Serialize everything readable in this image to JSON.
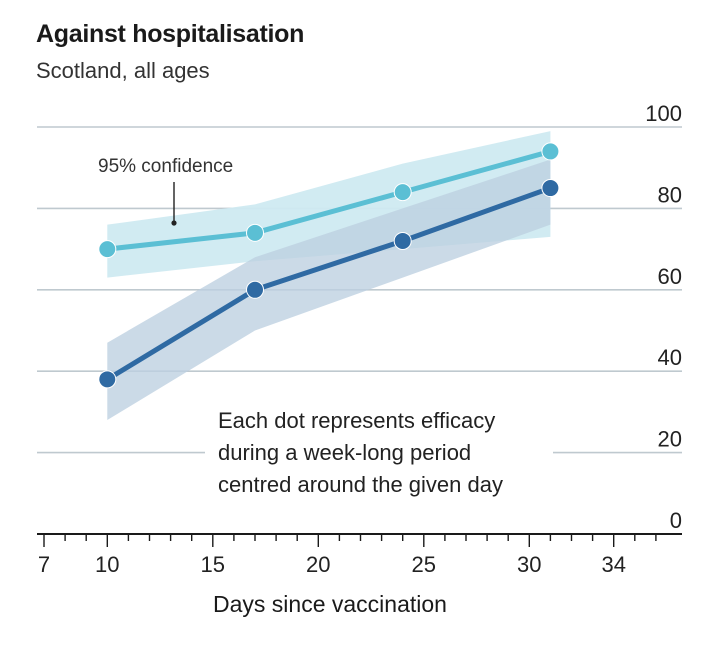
{
  "chart_data": {
    "type": "line",
    "title": "Against hospitalisation",
    "subtitle": "Scotland, all ages",
    "xlabel": "Days since vaccination",
    "ylabel": "",
    "xlim": [
      7,
      37
    ],
    "ylim": [
      0,
      100
    ],
    "x_tick_labels": [
      7,
      10,
      15,
      20,
      25,
      30,
      34
    ],
    "y_tick_labels": [
      0,
      20,
      40,
      60,
      80,
      100
    ],
    "grid": true,
    "series": [
      {
        "name": "series-light",
        "color": "#5bbfd4",
        "band_color": "#cfeaf1",
        "x": [
          10,
          17,
          24,
          31
        ],
        "values": [
          70,
          74,
          84,
          94
        ],
        "ci_low": [
          63,
          67,
          70,
          73
        ],
        "ci_high": [
          76,
          81,
          91,
          99
        ]
      },
      {
        "name": "series-dark",
        "color": "#2f6aa3",
        "band_color": "#bcd0e0",
        "x": [
          10,
          17,
          24,
          31
        ],
        "values": [
          38,
          60,
          72,
          85
        ],
        "ci_low": [
          28,
          50,
          63,
          76
        ],
        "ci_high": [
          47,
          68,
          80,
          92
        ]
      }
    ],
    "annotations": {
      "confidence_label": "95% confidence",
      "note_lines": [
        "Each dot represents efficacy",
        "during a week-long period",
        "centred around the given day"
      ]
    }
  }
}
